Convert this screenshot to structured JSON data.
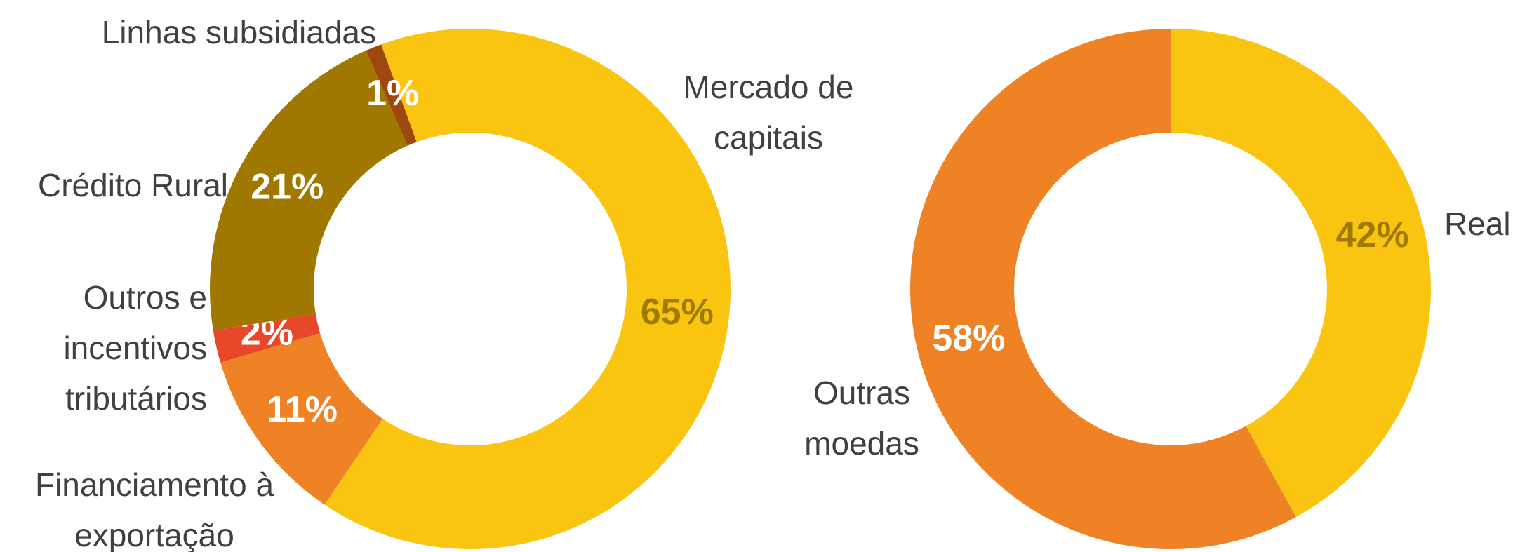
{
  "chart_data": [
    {
      "type": "donut",
      "categories": [
        "Mercado de capitais",
        "Financiamento à exportação",
        "Outros e incentivos tributários",
        "Crédito Rural",
        "Linhas subsidiadas"
      ],
      "values": [
        65,
        11,
        2,
        21,
        1
      ],
      "value_labels": [
        "65%",
        "11%",
        "2%",
        "21%",
        "1%"
      ],
      "colors": [
        "#fac511",
        "#ee8225",
        "#e8472a",
        "#a07800",
        "#9e480e"
      ],
      "value_label_colors": [
        "#9e7b00",
        "#ffffff",
        "#ffffff",
        "#ffffff",
        "#ffffff"
      ]
    },
    {
      "type": "donut",
      "categories": [
        "Real",
        "Outras moedas"
      ],
      "values": [
        42,
        58
      ],
      "value_labels": [
        "42%",
        "58%"
      ],
      "colors": [
        "#fac511",
        "#ee8225"
      ],
      "value_label_colors": [
        "#9e7b00",
        "#ffffff"
      ]
    }
  ]
}
